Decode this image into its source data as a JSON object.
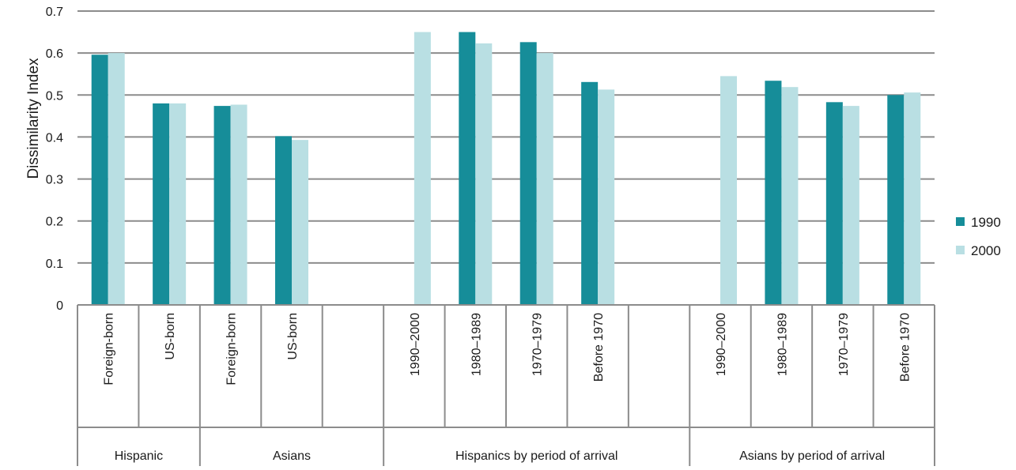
{
  "chart_data": {
    "type": "bar",
    "ylabel": "Dissimilarity Index",
    "ylim": [
      0,
      0.7
    ],
    "yticks": [
      "0",
      "0.1",
      "0.2",
      "0.3",
      "0.4",
      "0.5",
      "0.6",
      "0.7"
    ],
    "grid": true,
    "legend_position": "right",
    "colors": {
      "1990": "#168d99",
      "2000": "#b9dfe3",
      "axis": "#8c8c8c"
    },
    "categories": [
      "Foreign-born",
      "US-born",
      "Foreign-born",
      "US-born",
      "",
      "1990–2000",
      "1980–1989",
      "1970–1979",
      "Before 1970",
      "",
      "1990–2000",
      "1980–1989",
      "1970–1979",
      "Before 1970"
    ],
    "groups": [
      {
        "label": "Hispanic",
        "start": 0,
        "span": 2
      },
      {
        "label": "Asians",
        "start": 2,
        "span": 3
      },
      {
        "label": "Hispanics by period of arrival",
        "start": 5,
        "span": 5
      },
      {
        "label": "Asians by period of arrival",
        "start": 10,
        "span": 4
      }
    ],
    "series": [
      {
        "name": "1990",
        "values": [
          0.596,
          0.48,
          0.474,
          0.402,
          null,
          null,
          0.65,
          0.626,
          0.531,
          null,
          null,
          0.534,
          0.483,
          0.5
        ]
      },
      {
        "name": "2000",
        "values": [
          0.6,
          0.48,
          0.477,
          0.393,
          null,
          0.65,
          0.623,
          0.6,
          0.513,
          null,
          0.545,
          0.519,
          0.474,
          0.506
        ]
      }
    ]
  }
}
